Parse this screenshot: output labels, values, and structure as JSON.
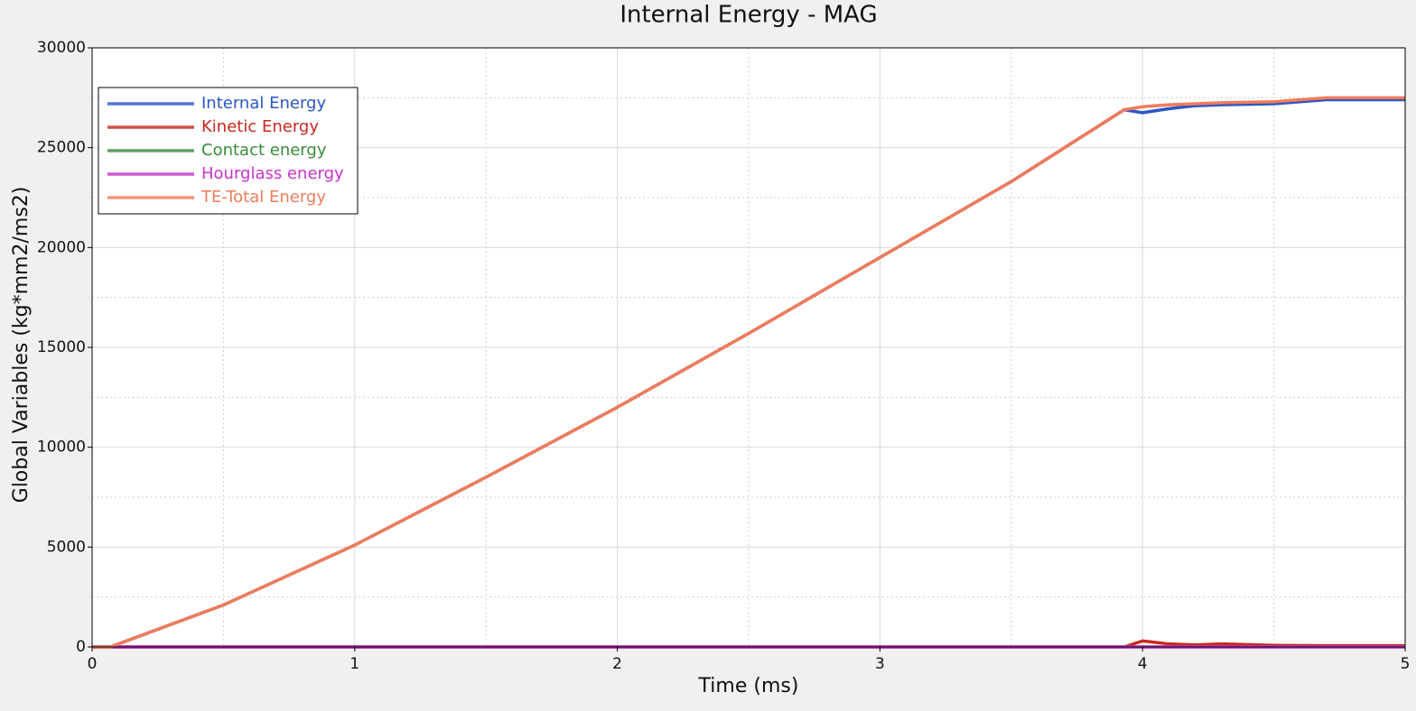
{
  "chart_data": {
    "type": "line",
    "title": "Internal Energy - MAG",
    "x_label": "Time (ms)",
    "y_label": "Global Variables (kg*mm2/ms2)",
    "x": [
      0,
      0.07,
      0.1,
      0.5,
      1,
      1.5,
      2,
      2.5,
      3,
      3.5,
      3.93,
      4.0,
      4.1,
      4.2,
      4.3,
      4.5,
      4.7,
      5
    ],
    "series": [
      {
        "name": "Internal Energy",
        "color": "#2a56c6",
        "values": [
          0,
          0,
          150,
          2100,
          5100,
          8500,
          12000,
          15700,
          19500,
          23300,
          26900,
          26750,
          26950,
          27100,
          27150,
          27200,
          27400,
          27400
        ]
      },
      {
        "name": "Kinetic Energy",
        "color": "#c8281e",
        "values": [
          0,
          0,
          0,
          0,
          0,
          0,
          0,
          0,
          0,
          0,
          0,
          300,
          150,
          100,
          150,
          80,
          60,
          60
        ]
      },
      {
        "name": "Contact energy",
        "color": "#3a8a3a",
        "values": [
          0,
          0,
          0,
          0,
          0,
          0,
          0,
          0,
          0,
          0,
          0,
          0,
          0,
          0,
          0,
          0,
          0,
          0
        ]
      },
      {
        "name": "Hourglass energy",
        "color": "#c832c8",
        "values": [
          0,
          0,
          0,
          0,
          0,
          0,
          0,
          0,
          0,
          0,
          0,
          0,
          0,
          0,
          0,
          0,
          0,
          0
        ]
      },
      {
        "name": "TE-Total Energy",
        "color": "#f07c5a",
        "values": [
          0,
          0,
          150,
          2100,
          5100,
          8500,
          12000,
          15700,
          19500,
          23300,
          26900,
          27050,
          27150,
          27200,
          27250,
          27300,
          27500,
          27500
        ]
      }
    ],
    "xlim": [
      0,
      5
    ],
    "xticks": [
      0,
      1,
      2,
      3,
      4,
      5
    ],
    "ylim": [
      0,
      30000
    ],
    "yticks": [
      0,
      5000,
      10000,
      15000,
      20000,
      25000,
      30000
    ],
    "grid": true,
    "legend": "upper-left"
  }
}
